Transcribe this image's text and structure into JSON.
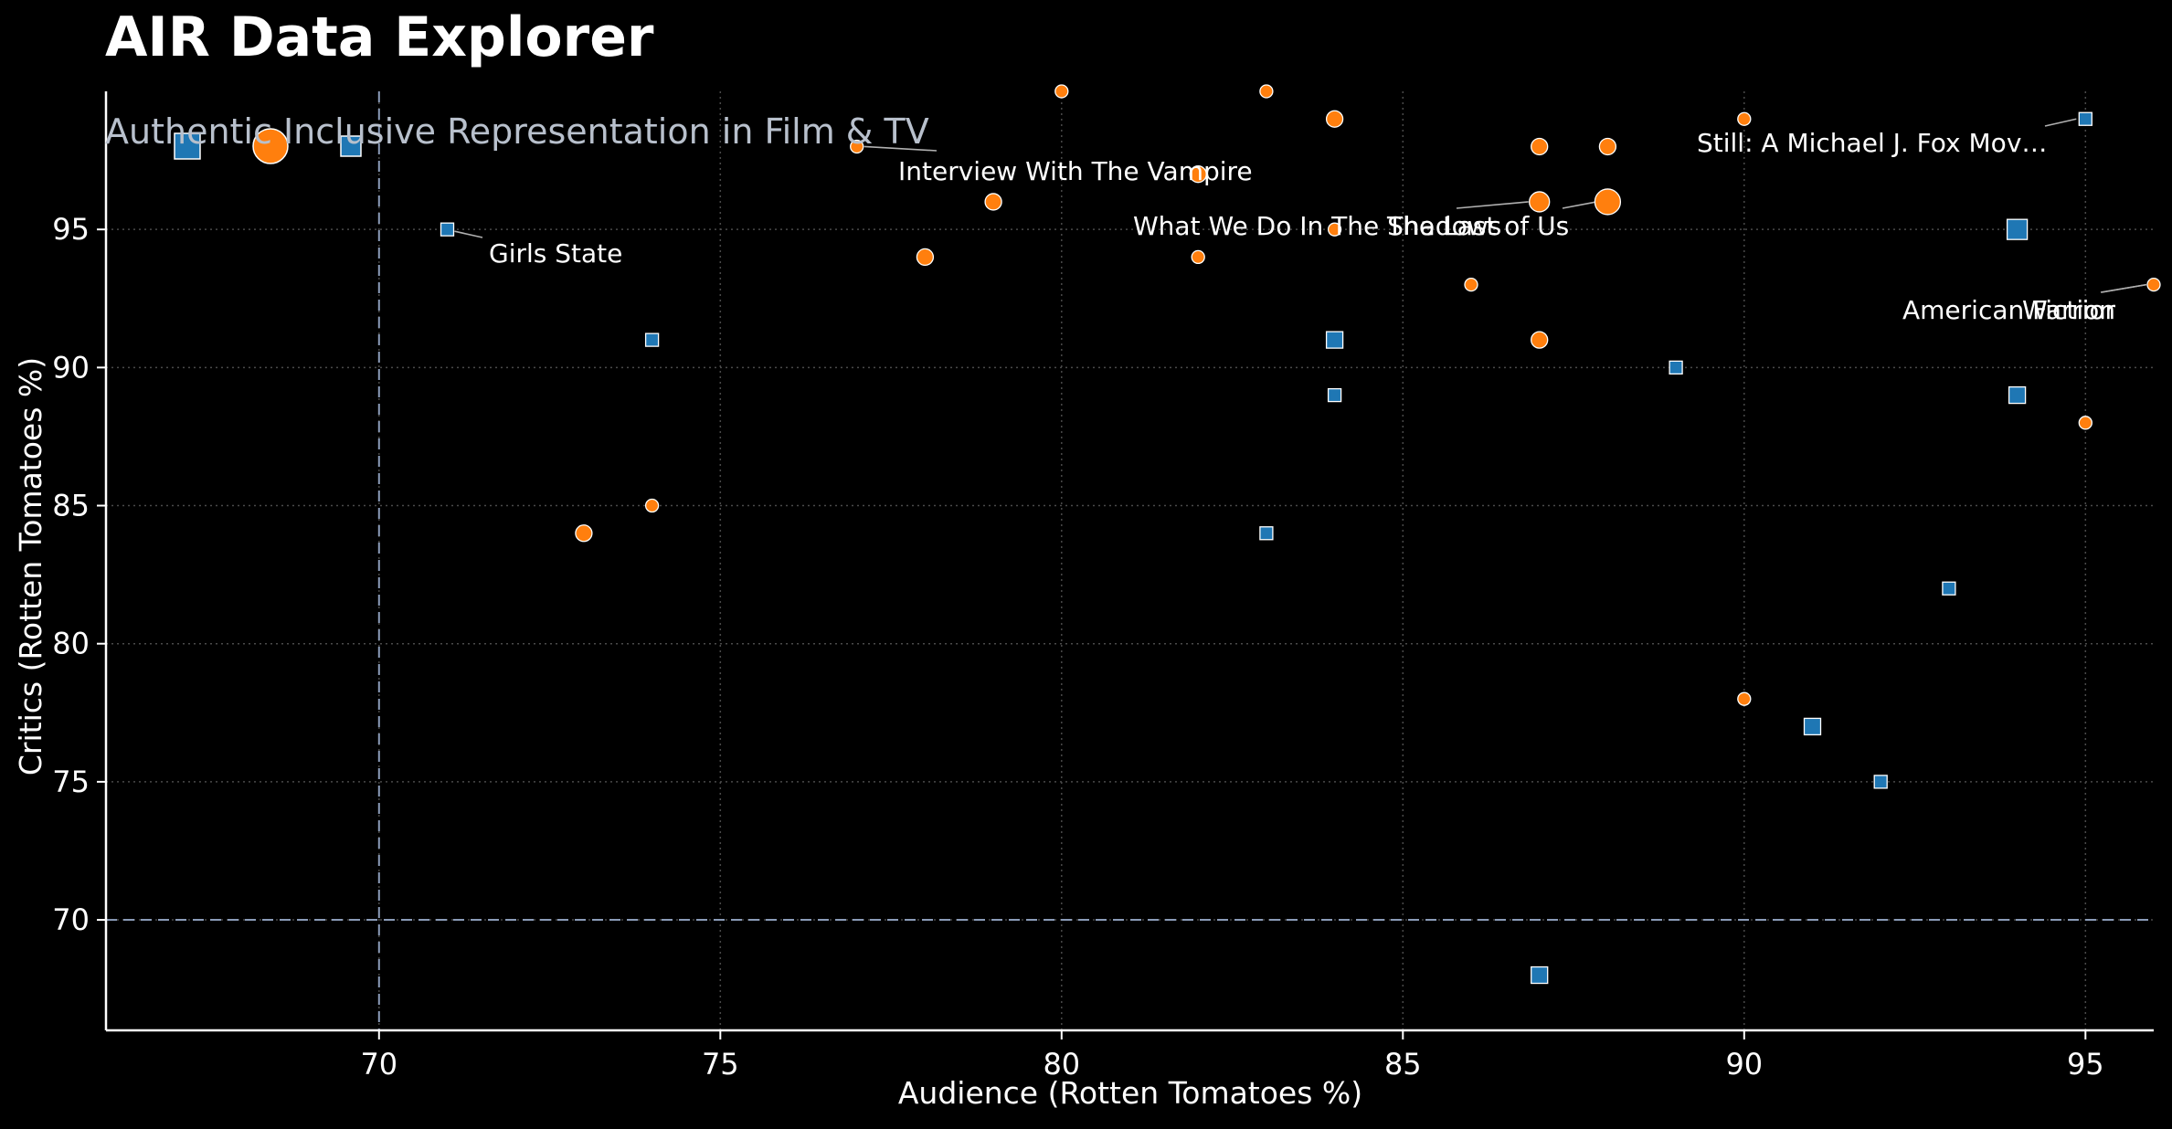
{
  "header": {
    "title": "AIR Data Explorer",
    "subtitle": "Authentic Inclusive Representation in Film & TV"
  },
  "chart_data": {
    "type": "scatter",
    "xlabel": "Audience (Rotten Tomatoes %)",
    "ylabel": "Critics (Rotten Tomatoes %)",
    "xlim": [
      66,
      96
    ],
    "ylim": [
      66,
      100
    ],
    "xticks": [
      70,
      75,
      80,
      85,
      90,
      95
    ],
    "yticks": [
      70,
      75,
      80,
      85,
      90,
      95
    ],
    "grid": true,
    "reference_lines": {
      "x": 70,
      "y": 70
    },
    "colors": {
      "square": "#1f77b4",
      "circle": "#ff7f0e",
      "reference": "#8a9bb8",
      "grid": "#4a4a4a"
    },
    "legend": [
      {
        "marker": "square",
        "size": "large"
      },
      {
        "marker": "circle",
        "size": "large"
      },
      {
        "marker": "square",
        "size": "medium"
      }
    ],
    "series": [
      {
        "marker": "square",
        "points": [
          {
            "x": 71,
            "y": 95,
            "size": 1,
            "label": "Girls State"
          },
          {
            "x": 74,
            "y": 91,
            "size": 1
          },
          {
            "x": 83,
            "y": 84,
            "size": 1
          },
          {
            "x": 84,
            "y": 91,
            "size": 2
          },
          {
            "x": 84,
            "y": 89,
            "size": 1
          },
          {
            "x": 87,
            "y": 68,
            "size": 2
          },
          {
            "x": 89,
            "y": 90,
            "size": 1
          },
          {
            "x": 91,
            "y": 77,
            "size": 2
          },
          {
            "x": 92,
            "y": 75,
            "size": 1
          },
          {
            "x": 93,
            "y": 82,
            "size": 1
          },
          {
            "x": 94,
            "y": 95,
            "size": 3
          },
          {
            "x": 94,
            "y": 89,
            "size": 2
          },
          {
            "x": 95,
            "y": 99,
            "size": 1,
            "label": "Still: A Michael J. Fox Mov…"
          }
        ]
      },
      {
        "marker": "circle",
        "points": [
          {
            "x": 73,
            "y": 84,
            "size": 2
          },
          {
            "x": 74,
            "y": 85,
            "size": 1
          },
          {
            "x": 77,
            "y": 98,
            "size": 1,
            "label": "Interview With The Vampire"
          },
          {
            "x": 78,
            "y": 94,
            "size": 2
          },
          {
            "x": 79,
            "y": 96,
            "size": 2
          },
          {
            "x": 80,
            "y": 100,
            "size": 1
          },
          {
            "x": 82,
            "y": 97,
            "size": 2
          },
          {
            "x": 82,
            "y": 94,
            "size": 1
          },
          {
            "x": 83,
            "y": 100,
            "size": 1
          },
          {
            "x": 84,
            "y": 99,
            "size": 2
          },
          {
            "x": 84,
            "y": 95,
            "size": 1
          },
          {
            "x": 86,
            "y": 93,
            "size": 1
          },
          {
            "x": 87,
            "y": 98,
            "size": 2
          },
          {
            "x": 87,
            "y": 96,
            "size": 3,
            "label": "What We Do In The Shadows"
          },
          {
            "x": 87,
            "y": 91,
            "size": 2
          },
          {
            "x": 88,
            "y": 98,
            "size": 2
          },
          {
            "x": 88,
            "y": 96,
            "size": 4,
            "label": "The Last of Us"
          },
          {
            "x": 90,
            "y": 99,
            "size": 1
          },
          {
            "x": 90,
            "y": 78,
            "size": 1
          },
          {
            "x": 95,
            "y": 88,
            "size": 1
          },
          {
            "x": 96,
            "y": 93,
            "size": 1,
            "label": "Warrior"
          }
        ]
      }
    ],
    "extra_labels": [
      {
        "text": "American Fiction",
        "x": 96,
        "y": 93
      }
    ]
  }
}
